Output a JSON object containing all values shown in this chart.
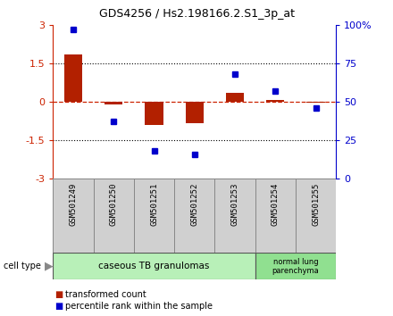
{
  "title": "GDS4256 / Hs2.198166.2.S1_3p_at",
  "samples": [
    "GSM501249",
    "GSM501250",
    "GSM501251",
    "GSM501252",
    "GSM501253",
    "GSM501254",
    "GSM501255"
  ],
  "transformed_count": [
    1.85,
    -0.1,
    -0.9,
    -0.85,
    0.35,
    0.07,
    -0.03
  ],
  "percentile_rank": [
    97,
    37,
    18,
    16,
    68,
    57,
    46
  ],
  "ylim_left": [
    -3,
    3
  ],
  "ylim_right": [
    0,
    100
  ],
  "hline_dotted": [
    1.5,
    -1.5
  ],
  "group1_label": "caseous TB granulomas",
  "group2_label": "normal lung\nparenchyma",
  "group1_count": 5,
  "group2_count": 2,
  "group1_color": "#b8f0b8",
  "group2_color": "#90e090",
  "cell_type_label": "cell type",
  "legend_red": "transformed count",
  "legend_blue": "percentile rank within the sample",
  "bar_color": "#b22000",
  "dot_color": "#0000cc",
  "ax_color_left": "#cc2200",
  "ax_color_right": "#0000cc",
  "yticks_left": [
    -3,
    -1.5,
    0,
    1.5,
    3
  ],
  "ytick_labels_left": [
    "-3",
    "-1.5",
    "0",
    "1.5",
    "3"
  ],
  "yticks_right": [
    0,
    25,
    50,
    75,
    100
  ],
  "ytick_labels_right": [
    "0",
    "25",
    "50",
    "75",
    "100%"
  ],
  "background_color": "#ffffff",
  "sample_box_color": "#d0d0d0",
  "sample_box_edge": "#888888"
}
